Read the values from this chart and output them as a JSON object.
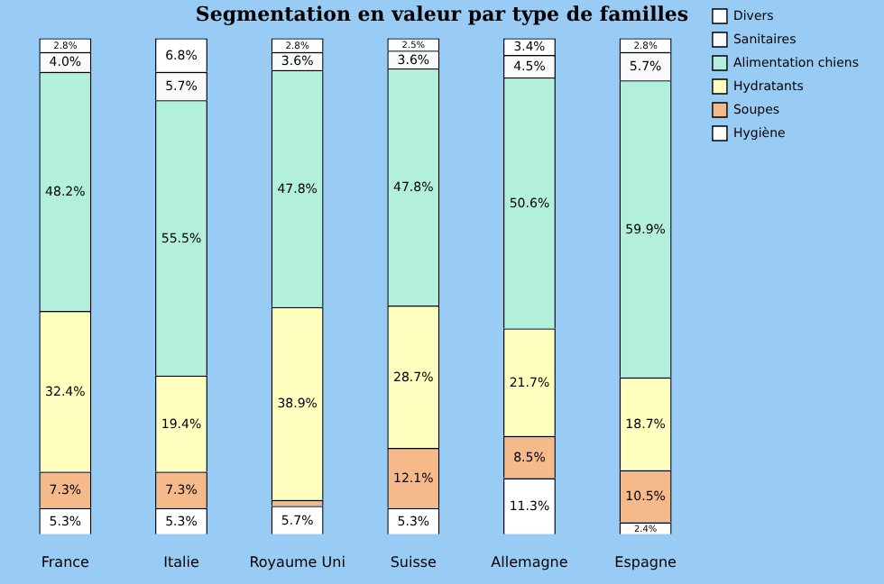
{
  "chart_data": {
    "type": "bar",
    "title": "Segmentation en valeur par type de familles",
    "stacked": true,
    "legend": "top right",
    "grid": false,
    "categories": [
      "France",
      "Italie",
      "Royaume Uni",
      "Suisse",
      "Allemagne",
      "Espagne"
    ],
    "series": [
      {
        "name": "Hygiène",
        "color": "#ffffff",
        "values": [
          5.3,
          5.3,
          5.7,
          5.3,
          11.3,
          2.4
        ],
        "value_labels": [
          "5.3%",
          "5.3%",
          "5.7%",
          "5.3%",
          "11.3%",
          "2.4%"
        ]
      },
      {
        "name": "Soupes",
        "color": "#f5b98a",
        "values": [
          7.3,
          7.3,
          1.2,
          12.1,
          8.5,
          10.5
        ],
        "value_labels": [
          "7.3%",
          "7.3%",
          null,
          "12.1%",
          "8.5%",
          "10.5%"
        ]
      },
      {
        "name": "Hydratants",
        "color": "#ffffc0",
        "values": [
          32.4,
          19.4,
          38.9,
          28.7,
          21.7,
          18.7
        ],
        "value_labels": [
          "32.4%",
          "19.4%",
          "38.9%",
          "28.7%",
          "21.7%",
          "18.7%"
        ]
      },
      {
        "name": "Alimentation chiens",
        "color": "#b3f0dc",
        "values": [
          48.2,
          55.5,
          47.8,
          47.8,
          50.6,
          59.9
        ],
        "value_labels": [
          "48.2%",
          "55.5%",
          "47.8%",
          "47.8%",
          "50.6%",
          "59.9%"
        ]
      },
      {
        "name": "Sanitaires",
        "color": "#fafafa",
        "values": [
          4.0,
          5.7,
          3.6,
          3.6,
          4.5,
          5.7
        ],
        "value_labels": [
          "4.0%",
          "5.7%",
          "3.6%",
          "3.6%",
          "4.5%",
          "5.7%"
        ]
      },
      {
        "name": "Divers",
        "color": "#ffffff",
        "values": [
          2.8,
          6.8,
          2.8,
          2.5,
          3.4,
          2.8
        ],
        "value_labels": [
          "2.8%",
          "6.8%",
          "2.8%",
          "2.5%",
          "3.4%",
          "2.8%"
        ]
      }
    ]
  }
}
